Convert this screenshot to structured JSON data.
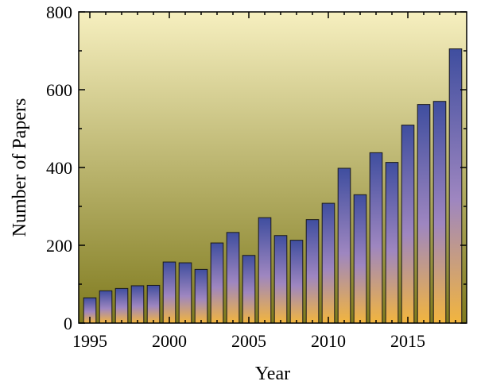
{
  "chart_data": {
    "type": "bar",
    "title": "",
    "xlabel": "Year",
    "ylabel": "Number of Papers",
    "categories": [
      1995,
      1996,
      1997,
      1998,
      1999,
      2000,
      2001,
      2002,
      2003,
      2004,
      2005,
      2006,
      2007,
      2008,
      2009,
      2010,
      2011,
      2012,
      2013,
      2014,
      2015,
      2016,
      2017,
      2018
    ],
    "values": [
      65,
      83,
      89,
      96,
      97,
      157,
      155,
      138,
      206,
      233,
      174,
      271,
      225,
      213,
      266,
      308,
      398,
      330,
      438,
      413,
      509,
      562,
      570,
      705
    ],
    "ylim": [
      0,
      800
    ],
    "xlim": [
      1994.3,
      2018.7
    ],
    "yticks": [
      0,
      200,
      400,
      600,
      800
    ],
    "xticks": [
      1995,
      2000,
      2005,
      2010,
      2015
    ],
    "grid": false,
    "colors": {
      "plot_bg_top": "#f6efbf",
      "plot_bg_bottom": "#7f7a1e",
      "bar_top": "#3f4e9f",
      "bar_mid": "#9e86c0",
      "bar_bottom": "#f2b53e",
      "bar_stroke": "#1a1a1a"
    }
  }
}
